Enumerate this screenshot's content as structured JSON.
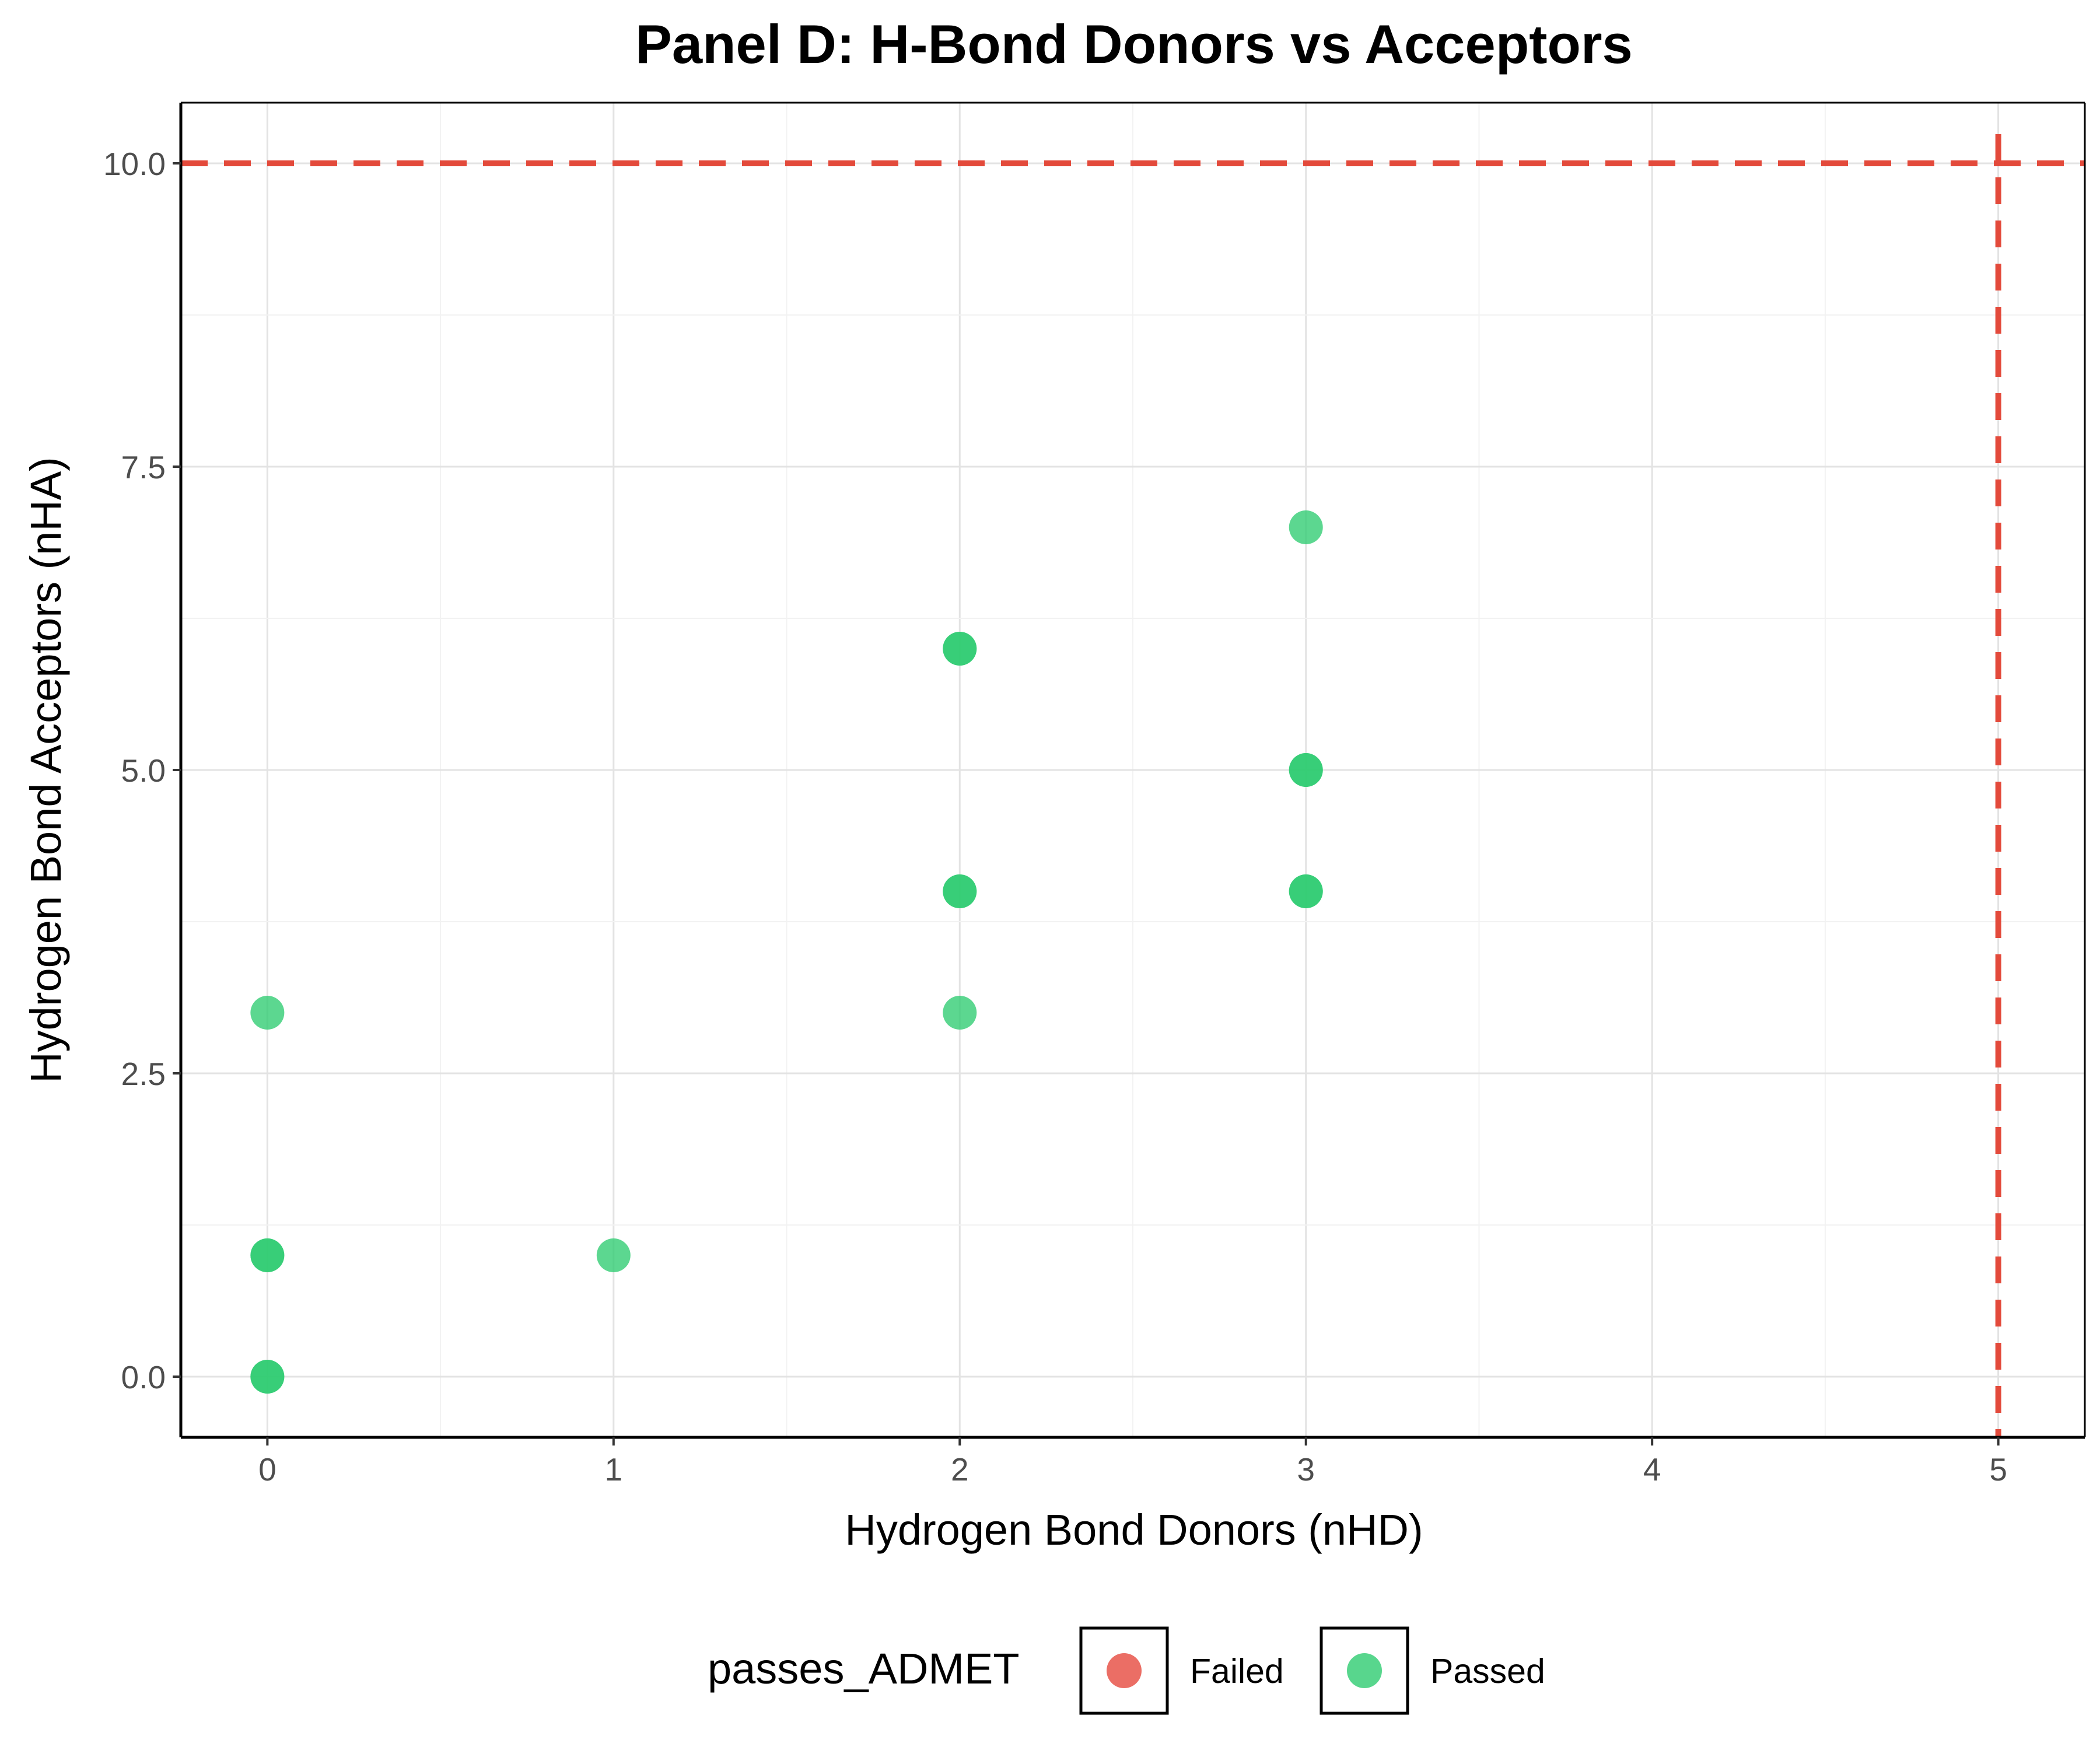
{
  "chart_data": {
    "type": "scatter",
    "title": "Panel D: H-Bond Donors vs Acceptors",
    "xlabel": "Hydrogen Bond Donors (nHD)",
    "ylabel": "Hydrogen Bond Acceptors (nHA)",
    "xlim": [
      -0.25,
      5.25
    ],
    "ylim": [
      -0.5,
      10.5
    ],
    "x_ticks": [
      "0",
      "1",
      "2",
      "3",
      "4",
      "5"
    ],
    "x_tick_values": [
      0,
      1,
      2,
      3,
      4,
      5
    ],
    "y_ticks": [
      "0.0",
      "2.5",
      "5.0",
      "7.5",
      "10.0"
    ],
    "y_tick_values": [
      0,
      2.5,
      5,
      7.5,
      10
    ],
    "grid": true,
    "reference_lines": [
      {
        "axis": "y",
        "value": 10,
        "style": "dashed",
        "color": "#e34a3b"
      },
      {
        "axis": "x",
        "value": 5,
        "style": "dashed",
        "color": "#e34a3b"
      }
    ],
    "legend": {
      "title": "passes_ADMET",
      "position": "bottom",
      "entries": [
        {
          "label": "Failed",
          "color": "#e8554a"
        },
        {
          "label": "Passed",
          "color": "#2ecc71"
        }
      ]
    },
    "series": [
      {
        "name": "Passed",
        "color": "#2ecc71",
        "points": [
          {
            "x": 0,
            "y": 0
          },
          {
            "x": 0,
            "y": 0
          },
          {
            "x": 0,
            "y": 1
          },
          {
            "x": 0,
            "y": 1
          },
          {
            "x": 0,
            "y": 3
          },
          {
            "x": 1,
            "y": 1
          },
          {
            "x": 2,
            "y": 3
          },
          {
            "x": 2,
            "y": 4
          },
          {
            "x": 2,
            "y": 4
          },
          {
            "x": 2,
            "y": 6
          },
          {
            "x": 2,
            "y": 6
          },
          {
            "x": 3,
            "y": 4
          },
          {
            "x": 3,
            "y": 4
          },
          {
            "x": 3,
            "y": 5
          },
          {
            "x": 3,
            "y": 5
          },
          {
            "x": 3,
            "y": 7
          }
        ]
      },
      {
        "name": "Failed",
        "color": "#e8554a",
        "points": []
      }
    ]
  }
}
